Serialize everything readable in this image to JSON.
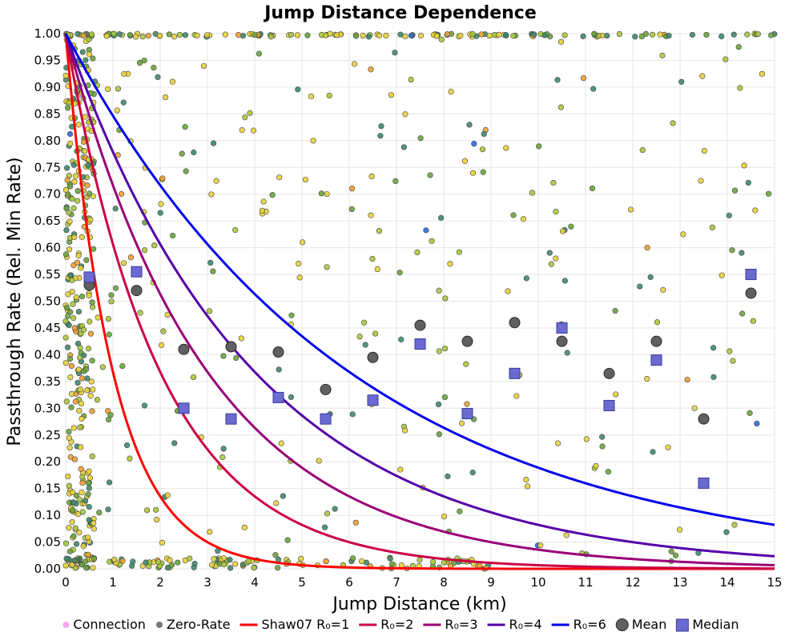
{
  "chart_data": {
    "type": "scatter",
    "title": "Jump Distance Dependence",
    "xlabel": "Jump Distance (km)",
    "ylabel": "Passthrough Rate (Rel. Min Rate)",
    "xlim": [
      0,
      15
    ],
    "ylim": [
      0,
      1
    ],
    "x_ticks": [
      "0",
      "1",
      "2",
      "3",
      "4",
      "5",
      "6",
      "7",
      "8",
      "9",
      "10",
      "11",
      "12",
      "13",
      "14",
      "15"
    ],
    "y_ticks": [
      "0.00",
      "0.05",
      "0.10",
      "0.15",
      "0.20",
      "0.25",
      "0.30",
      "0.35",
      "0.40",
      "0.45",
      "0.50",
      "0.55",
      "0.60",
      "0.65",
      "0.70",
      "0.75",
      "0.80",
      "0.85",
      "0.90",
      "0.95",
      "1.00"
    ],
    "grid": true,
    "legend_position": "bottom",
    "legend": [
      {
        "label": "Connection",
        "kind": "dot",
        "color": "#f7a8f0"
      },
      {
        "label": "Zero-Rate",
        "kind": "dot",
        "color": "#777777"
      },
      {
        "label": "Shaw07 R₀=1",
        "kind": "line",
        "color": "#ff0000"
      },
      {
        "label": "R₀=2",
        "kind": "line",
        "color": "#cc0044"
      },
      {
        "label": "R₀=3",
        "kind": "line",
        "color": "#990077"
      },
      {
        "label": "R₀=4",
        "kind": "line",
        "color": "#5500aa"
      },
      {
        "label": "R₀=6",
        "kind": "line",
        "color": "#0000ee"
      },
      {
        "label": "Mean",
        "kind": "circle",
        "color": "#606060"
      },
      {
        "label": "Median",
        "kind": "square",
        "color": "#6a6ad0"
      }
    ],
    "curves": [
      {
        "name": "Shaw07 R₀=1",
        "R0": 1,
        "color": "#ff0000"
      },
      {
        "name": "R₀=2",
        "R0": 2,
        "color": "#cc0044"
      },
      {
        "name": "R₀=3",
        "R0": 3,
        "color": "#990077"
      },
      {
        "name": "R₀=4",
        "R0": 4,
        "color": "#5500aa"
      },
      {
        "name": "R₀=6",
        "R0": 6,
        "color": "#0000ee"
      }
    ],
    "mean": {
      "x": [
        0.5,
        1.5,
        2.5,
        3.5,
        4.5,
        5.5,
        6.5,
        7.5,
        8.5,
        9.5,
        10.5,
        11.5,
        12.5,
        13.5,
        14.5
      ],
      "y": [
        0.53,
        0.52,
        0.41,
        0.415,
        0.405,
        0.335,
        0.395,
        0.455,
        0.425,
        0.46,
        0.425,
        0.365,
        0.425,
        0.28,
        0.515
      ]
    },
    "median": {
      "x": [
        0.5,
        1.5,
        2.5,
        3.5,
        4.5,
        5.5,
        6.5,
        7.5,
        8.5,
        9.5,
        10.5,
        11.5,
        12.5,
        13.5,
        14.5
      ],
      "y": [
        0.545,
        0.555,
        0.3,
        0.28,
        0.32,
        0.28,
        0.315,
        0.42,
        0.29,
        0.365,
        0.45,
        0.305,
        0.39,
        0.16,
        0.55
      ]
    },
    "scatter_palette": [
      "#e8d23a",
      "#a8c83a",
      "#6aa43a",
      "#3e8a6c",
      "#f0a030",
      "#2a6ad8"
    ]
  }
}
